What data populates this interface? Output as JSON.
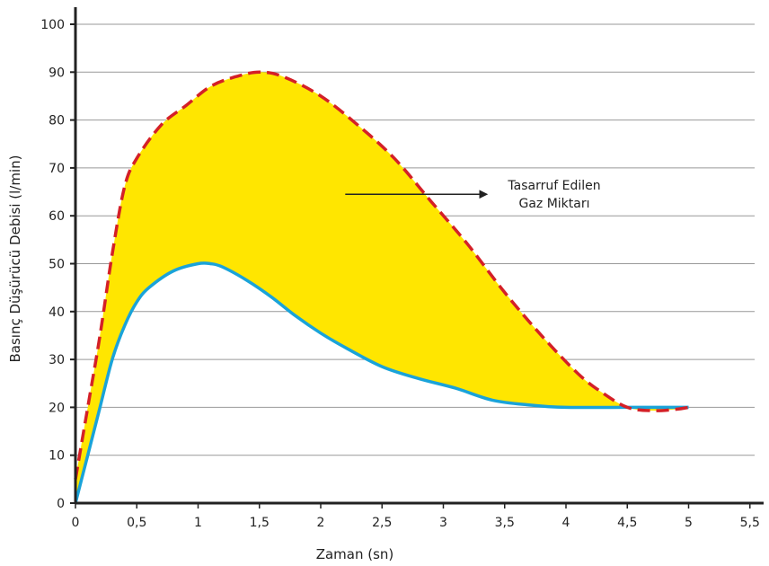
{
  "chart_data": {
    "type": "area",
    "xlabel": "Zaman (sn)",
    "ylabel": "Basınç Düşürücü Debisi (l/min)",
    "xlim": [
      0,
      5.5
    ],
    "ylim": [
      0,
      100
    ],
    "x_ticks": [
      "0",
      "0,5",
      "1",
      "1,5",
      "2",
      "2,5",
      "3",
      "3,5",
      "4",
      "4,5",
      "5",
      "5,5"
    ],
    "y_ticks": [
      "0",
      "10",
      "20",
      "30",
      "40",
      "50",
      "60",
      "70",
      "80",
      "90",
      "100"
    ],
    "grid": "horizontal",
    "series": [
      {
        "line_style": "dashed",
        "color": "#d42027",
        "points": [
          [
            0,
            5
          ],
          [
            0.1,
            20
          ],
          [
            0.2,
            35
          ],
          [
            0.3,
            52
          ],
          [
            0.4,
            66
          ],
          [
            0.5,
            72
          ],
          [
            0.7,
            79
          ],
          [
            0.9,
            83
          ],
          [
            1.1,
            87
          ],
          [
            1.3,
            89
          ],
          [
            1.5,
            90
          ],
          [
            1.7,
            89
          ],
          [
            2.0,
            85
          ],
          [
            2.3,
            79
          ],
          [
            2.6,
            72
          ],
          [
            2.9,
            63
          ],
          [
            3.2,
            54
          ],
          [
            3.5,
            44
          ],
          [
            3.8,
            35
          ],
          [
            4.1,
            27
          ],
          [
            4.3,
            23
          ],
          [
            4.5,
            20
          ],
          [
            4.7,
            19.3
          ],
          [
            4.9,
            19.6
          ],
          [
            5.0,
            20
          ]
        ]
      },
      {
        "line_style": "solid",
        "color": "#1aa3d9",
        "points": [
          [
            0,
            0
          ],
          [
            0.1,
            10
          ],
          [
            0.2,
            20
          ],
          [
            0.3,
            30
          ],
          [
            0.4,
            37
          ],
          [
            0.5,
            42
          ],
          [
            0.6,
            45
          ],
          [
            0.8,
            48.5
          ],
          [
            1.0,
            50
          ],
          [
            1.1,
            50
          ],
          [
            1.2,
            49.3
          ],
          [
            1.4,
            46.5
          ],
          [
            1.6,
            43
          ],
          [
            1.8,
            39
          ],
          [
            2.0,
            35.5
          ],
          [
            2.2,
            32.5
          ],
          [
            2.5,
            28.5
          ],
          [
            2.8,
            26
          ],
          [
            3.1,
            24
          ],
          [
            3.4,
            21.5
          ],
          [
            3.7,
            20.5
          ],
          [
            4.0,
            20
          ],
          [
            4.5,
            20
          ],
          [
            5.0,
            20
          ]
        ]
      }
    ],
    "fill_between": {
      "color": "#ffe600"
    },
    "annotation": {
      "lines": [
        "Tasarruf Edilen",
        "Gaz Miktarı"
      ],
      "arrow_from": [
        2.2,
        64.5
      ],
      "arrow_to": [
        3.35,
        64.5
      ]
    }
  }
}
